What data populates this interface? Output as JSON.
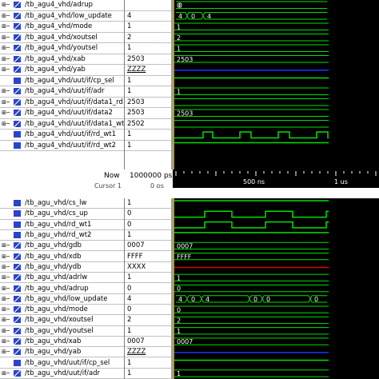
{
  "top_panel": {
    "rows": [
      {
        "name": "/tb_agu4_vhd/adrup",
        "value": "",
        "expand": "plus",
        "type": "bus"
      },
      {
        "name": "/tb_agu4_vhd/low_update",
        "value": "4",
        "expand": "plus",
        "type": "bus"
      },
      {
        "name": "/tb_agu4_vhd/mode",
        "value": "1",
        "expand": "plus",
        "type": "bus"
      },
      {
        "name": "/tb_agu4_vhd/xoutsel",
        "value": "2",
        "expand": "plus",
        "type": "bus"
      },
      {
        "name": "/tb_agu4_vhd/youtsel",
        "value": "1",
        "expand": "plus",
        "type": "bus"
      },
      {
        "name": "/tb_agu4_vhd/xab",
        "value": "2503",
        "expand": "plus",
        "type": "bus"
      },
      {
        "name": "/tb_agu4_vhd/yab",
        "value": "ZZZZ",
        "expand": "plus",
        "type": "bus"
      },
      {
        "name": "/tb_agu4_vhd/uut/if/cp_sel",
        "value": "1",
        "expand": "",
        "type": "blue"
      },
      {
        "name": "/tb_agu4_vhd/uut/if/adr",
        "value": "1",
        "expand": "plus",
        "type": "bus"
      },
      {
        "name": "/tb_agu4_vhd/uut/if/data1_rd",
        "value": "2503",
        "expand": "plus",
        "type": "bus"
      },
      {
        "name": "/tb_agu4_vhd/uut/if/data2",
        "value": "2503",
        "expand": "plus",
        "type": "bus"
      },
      {
        "name": "/tb_agu4_vhd/uut/if/data1_wt",
        "value": "2502",
        "expand": "plus",
        "type": "bus"
      },
      {
        "name": "/tb_agu4_vhd/uut/if/rd_wt1",
        "value": "1",
        "expand": "",
        "type": "blue"
      },
      {
        "name": "/tb_agu4_vhd/uut/if/rd_wt2",
        "value": "1",
        "expand": "",
        "type": "blue"
      }
    ],
    "wave_labels": {
      "adrup": "0",
      "low_update": [
        "4",
        "0",
        "4"
      ],
      "mode": "1",
      "xoutsel": "2",
      "youtsel": "1",
      "xab": "2503",
      "adr": "1",
      "data2": "2503"
    },
    "now_label": "Now",
    "now_value": "1000000 ps",
    "cursor_label": "Cursor 1",
    "cursor_value": "0 ps",
    "time_ticks": [
      "500 ns",
      "1 us"
    ]
  },
  "bottom_panel": {
    "rows": [
      {
        "name": "/tb_agu_vhd/cs_lw",
        "value": "1",
        "expand": "",
        "type": "blue"
      },
      {
        "name": "/tb_agu_vhd/cs_up",
        "value": "0",
        "expand": "",
        "type": "blue"
      },
      {
        "name": "/tb_agu_vhd/rd_wt1",
        "value": "0",
        "expand": "",
        "type": "blue"
      },
      {
        "name": "/tb_agu_vhd/rd_wt2",
        "value": "1",
        "expand": "",
        "type": "blue"
      },
      {
        "name": "/tb_agu_vhd/gdb",
        "value": "0007",
        "expand": "plus",
        "type": "bus"
      },
      {
        "name": "/tb_agu_vhd/xdb",
        "value": "FFFF",
        "expand": "plus",
        "type": "bus"
      },
      {
        "name": "/tb_agu_vhd/ydb",
        "value": "XXXX",
        "expand": "plus",
        "type": "bus"
      },
      {
        "name": "/tb_agu_vhd/adrlw",
        "value": "1",
        "expand": "plus",
        "type": "bus"
      },
      {
        "name": "/tb_agu_vhd/adrup",
        "value": "0",
        "expand": "plus",
        "type": "bus"
      },
      {
        "name": "/tb_agu_vhd/low_update",
        "value": "4",
        "expand": "plus",
        "type": "bus"
      },
      {
        "name": "/tb_agu_vhd/mode",
        "value": "0",
        "expand": "plus",
        "type": "bus"
      },
      {
        "name": "/tb_agu_vhd/xoutsel",
        "value": "2",
        "expand": "plus",
        "type": "bus"
      },
      {
        "name": "/tb_agu_vhd/youtsel",
        "value": "1",
        "expand": "plus",
        "type": "bus"
      },
      {
        "name": "/tb_agu_vhd/xab",
        "value": "0007",
        "expand": "plus",
        "type": "bus"
      },
      {
        "name": "/tb_agu_vhd/yab",
        "value": "ZZZZ",
        "expand": "plus",
        "type": "bus"
      },
      {
        "name": "/tb_agu_vhd/uut/if/cp_sel",
        "value": "1",
        "expand": "",
        "type": "blue"
      },
      {
        "name": "/tb_agu_vhd/uut/if/adr",
        "value": "1",
        "expand": "plus",
        "type": "bus"
      }
    ],
    "wave_labels": {
      "gdb": "0007",
      "xdb": "FFFF",
      "adrlw": "1",
      "adrup": "0",
      "low_update": [
        "4",
        "0",
        "4",
        "0",
        "0",
        "0"
      ],
      "mode": "0",
      "xoutsel": "2",
      "youtsel": "1",
      "xab": "0007",
      "adr": "1"
    }
  },
  "colors": {
    "wave": "#00e000",
    "bus_z": "#2030ff",
    "bus_x": "#e00000",
    "cursor": "#ffd400",
    "wave_bg": "#000000",
    "signal_icon": "#2b45c7"
  }
}
